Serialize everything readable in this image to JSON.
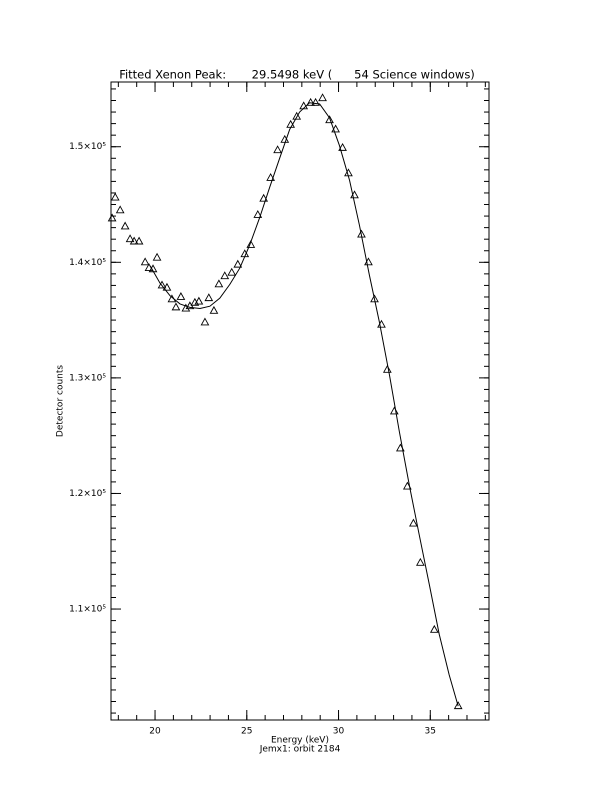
{
  "chart_data": {
    "type": "scatter",
    "title": "Fitted Xenon Peak:       29.5498 keV (      54 Science windows)",
    "x_label": "Energy (keV)",
    "subtitle": "Jemx1: orbit 2184",
    "y_label": "Detector counts",
    "xlim": [
      17.6,
      38.2
    ],
    "ylim": [
      100400,
      155600
    ],
    "xticks": [
      20,
      25,
      30,
      35
    ],
    "yticks": [
      {
        "value": 110000,
        "label": "1.1×10⁵"
      },
      {
        "value": 120000,
        "label": "1.2×10⁵"
      },
      {
        "value": 130000,
        "label": "1.3×10⁵"
      },
      {
        "value": 140000,
        "label": "1.4×10⁵"
      },
      {
        "value": 150000,
        "label": "1.5×10⁵"
      }
    ],
    "color": "#000000",
    "series": [
      {
        "style": "markers",
        "color": "#000000",
        "x": [
          17.66,
          17.83,
          18.1,
          18.37,
          18.64,
          18.86,
          19.13,
          19.46,
          19.67,
          19.89,
          20.11,
          20.38,
          20.65,
          20.92,
          21.14,
          21.41,
          21.68,
          21.9,
          22.17,
          22.39,
          22.72,
          22.93,
          23.21,
          23.48,
          23.8,
          24.18,
          24.51,
          24.89,
          25.22,
          25.6,
          25.92,
          26.3,
          26.68,
          27.07,
          27.39,
          27.72,
          28.1,
          28.48,
          28.75,
          29.13,
          29.51,
          29.84,
          30.22,
          30.54,
          30.87,
          31.25,
          31.63,
          31.96,
          32.34,
          32.66,
          33.04,
          33.37,
          33.75,
          34.08,
          34.46,
          35.22,
          36.52
        ],
        "values": [
          143800,
          145600,
          144500,
          143100,
          142000,
          141800,
          141800,
          140000,
          139500,
          139400,
          140400,
          138000,
          137800,
          136800,
          136100,
          137000,
          136000,
          136200,
          136500,
          136600,
          134800,
          136900,
          135800,
          138100,
          138800,
          139100,
          139800,
          140700,
          141500,
          144100,
          145500,
          147300,
          149700,
          150600,
          151900,
          152600,
          153500,
          153800,
          153800,
          154200,
          152300,
          151500,
          149900,
          147700,
          145800,
          142400,
          140000,
          136800,
          134600,
          130700,
          127100,
          123900,
          120600,
          117400,
          114000,
          108200,
          101600
        ]
      },
      {
        "style": "line",
        "color": "#000000",
        "x": [
          19.73,
          20.27,
          20.82,
          21.36,
          21.9,
          22.45,
          22.99,
          23.53,
          24.08,
          24.62,
          25.16,
          25.71,
          26.25,
          26.79,
          27.34,
          27.88,
          28.42,
          28.97,
          29.51,
          30.05,
          30.6,
          31.14,
          31.68,
          32.23,
          32.77,
          33.32,
          33.86,
          34.4,
          34.95,
          35.49,
          36.03,
          36.52
        ],
        "values": [
          139700,
          138200,
          137100,
          136400,
          136100,
          136000,
          136200,
          136900,
          138100,
          139500,
          141500,
          143900,
          146500,
          149000,
          151500,
          153000,
          153800,
          153700,
          152500,
          150100,
          147100,
          143200,
          138900,
          134800,
          130300,
          125300,
          120700,
          116400,
          112100,
          107800,
          104300,
          101600
        ]
      }
    ]
  }
}
